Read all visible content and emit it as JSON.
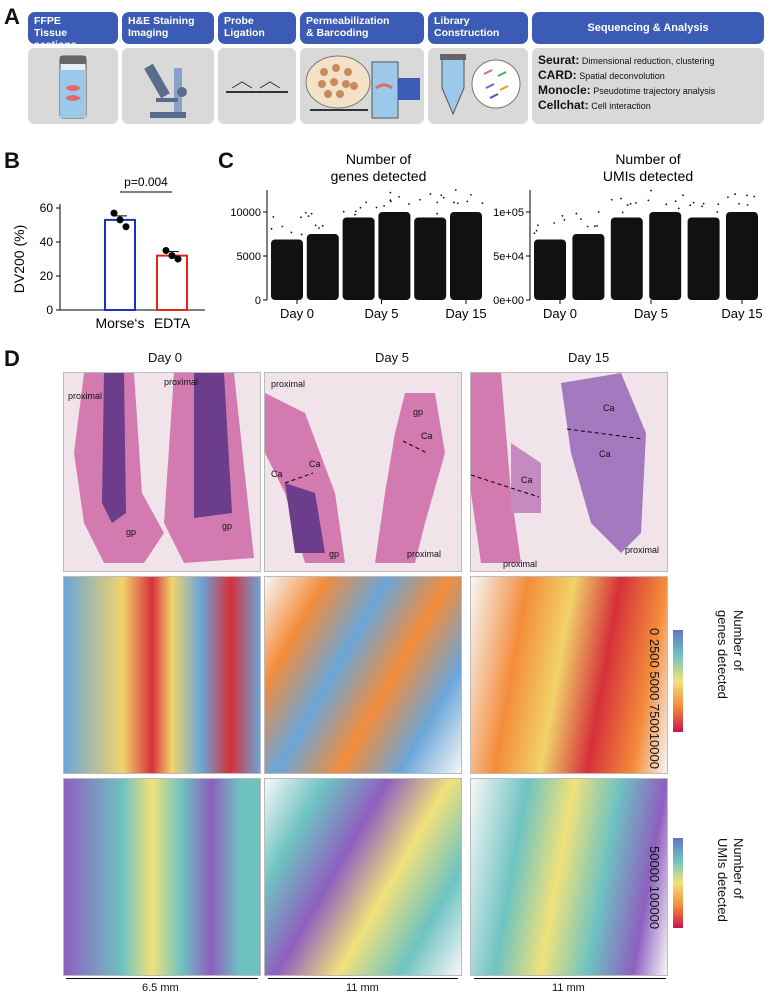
{
  "panels": {
    "a": "A",
    "b": "B",
    "c": "C",
    "d": "D"
  },
  "workflow": {
    "steps": [
      {
        "label": "FFPE\nTissue sections"
      },
      {
        "label": "H&E Staining\nImaging"
      },
      {
        "label": "Probe\nLigation"
      },
      {
        "label": "Permeabilization\n& Barcoding"
      },
      {
        "label": "Library\nConstruction"
      }
    ],
    "analysis_title": "Sequencing & Analysis",
    "tools": [
      {
        "name": "Seurat:",
        "desc": "Dimensional reduction, clustering"
      },
      {
        "name": "CARD:",
        "desc": "Spatial deconvolution"
      },
      {
        "name": "Monocle:",
        "desc": "Pseudotime trajectory analysis"
      },
      {
        "name": "Cellchat:",
        "desc": "Cell interaction"
      }
    ]
  },
  "chart_data": [
    {
      "type": "bar",
      "categories": [
        "Morse's",
        "EDTA"
      ],
      "tick_labels": [
        "Morse‘s",
        "EDTA"
      ],
      "values": [
        53,
        32
      ],
      "ylabel": "DV200 (%)",
      "ylim": [
        0,
        60
      ],
      "yticks": [
        "0",
        "20",
        "40",
        "60"
      ],
      "points": [
        [
          57,
          53,
          49
        ],
        [
          35,
          32,
          30
        ]
      ],
      "bar_colors": [
        "#1f2fbf",
        "#e0261b"
      ],
      "annotation": "p=0.004"
    },
    {
      "type": "scatter",
      "title": "Number of\ngenes detected",
      "categories": [
        "Day 0",
        "Day 5",
        "Day 15"
      ],
      "yticks": [
        "0",
        "5000",
        "10000"
      ],
      "ylim": [
        0,
        12500
      ]
    },
    {
      "type": "scatter",
      "title": "Number of\nUMIs detected",
      "categories": [
        "Day 0",
        "Day 5",
        "Day 15"
      ],
      "yticks": [
        "0e+00",
        "5e+04",
        "1e+05"
      ],
      "ylim": [
        0,
        140000
      ]
    }
  ],
  "spatial": {
    "columns": [
      "Day 0",
      "Day 5",
      "Day 15"
    ],
    "labels": {
      "proximal": "proximal",
      "gp": "gp",
      "ca": "Ca"
    },
    "colorbar1": {
      "title": "Number of\ngenes detected",
      "ticks": "0  2500 5000 750010000"
    },
    "colorbar2": {
      "title": "Number of\nUMIs detected",
      "ticks": "50000  100000"
    },
    "scales": [
      "6.5 mm",
      "11 mm",
      "11 mm"
    ]
  }
}
